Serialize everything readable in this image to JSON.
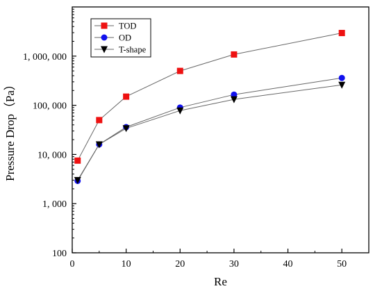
{
  "chart_data": {
    "type": "line",
    "xlabel": "Re",
    "ylabel": "Pressure Drop（Pa）",
    "x_scale": "linear",
    "y_scale": "log",
    "xlim": [
      0,
      55
    ],
    "ylim": [
      100,
      10000000
    ],
    "x_ticks": [
      0,
      10,
      20,
      30,
      40,
      50
    ],
    "x_tick_labels": [
      "0",
      "10",
      "20",
      "30",
      "40",
      "50"
    ],
    "y_ticks": [
      100,
      1000,
      10000,
      100000,
      1000000
    ],
    "y_tick_labels": [
      "100",
      "1, 000",
      "10, 000",
      "100, 000",
      "1, 000, 000"
    ],
    "grid": false,
    "legend_position": "top-left",
    "x": [
      1,
      5,
      10,
      20,
      30,
      50
    ],
    "series": [
      {
        "name": "TOD",
        "marker": "square",
        "color": "#ee1111",
        "values": [
          7500,
          50000,
          150000,
          500000,
          1080000,
          2950000
        ]
      },
      {
        "name": "OD",
        "marker": "circle",
        "color": "#1111ee",
        "values": [
          2900,
          16000,
          36000,
          90000,
          165000,
          360000
        ]
      },
      {
        "name": "T-shape",
        "marker": "triangle-down",
        "color": "#000000",
        "values": [
          3000,
          16000,
          34000,
          78000,
          132000,
          260000
        ]
      }
    ]
  }
}
